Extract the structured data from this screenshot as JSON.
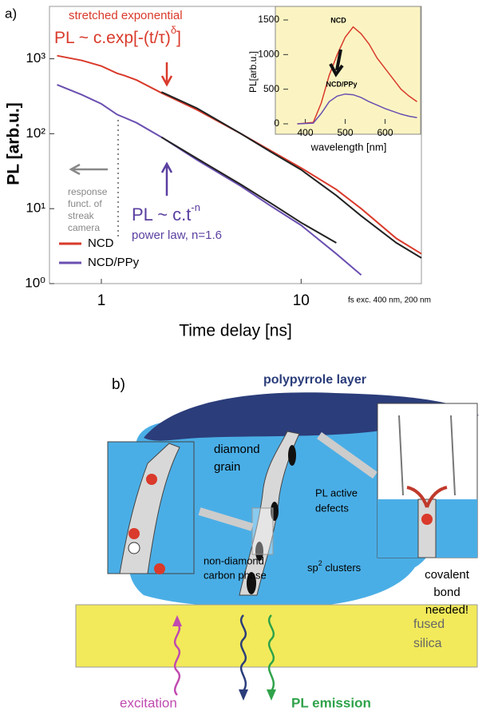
{
  "chart_data": [
    {
      "type": "line",
      "panel_label": "a)",
      "x_label": "Time delay [ns]",
      "y_label": "PL [arb.u.]",
      "xlog": true,
      "ylog": true,
      "xlim": [
        0.55,
        40
      ],
      "ylim": [
        1,
        5000
      ],
      "xticks": [
        1,
        10
      ],
      "yticks": [
        {
          "value": 1,
          "label": "10⁰"
        },
        {
          "value": 10,
          "label": "10¹"
        },
        {
          "value": 100,
          "label": "10²"
        },
        {
          "value": 1000,
          "label": "10³"
        }
      ],
      "legend": "lower left",
      "x": [
        0.6,
        0.8,
        1,
        1.2,
        1.3,
        1.5,
        2,
        3,
        5,
        7,
        10,
        15,
        20,
        30,
        40
      ],
      "series": [
        {
          "name": "NCD",
          "color": "#d93a2b",
          "values": [
            1100,
            950,
            800,
            640,
            600,
            520,
            350,
            210,
            100,
            60,
            35,
            18,
            10,
            4,
            2.5
          ]
        },
        {
          "name": "NCD/PPy",
          "color": "#6a4fb0",
          "values": [
            450,
            330,
            250,
            180,
            165,
            140,
            90,
            45,
            20,
            11,
            6,
            2.5,
            1.3,
            null,
            null
          ]
        },
        {
          "color": "#222222",
          "values": [
            null,
            null,
            null,
            null,
            null,
            null,
            360,
            220,
            100,
            58,
            33,
            15,
            8,
            3.5,
            2.2
          ]
        },
        {
          "color": "#222222",
          "values": [
            null,
            null,
            null,
            null,
            null,
            null,
            90,
            47,
            21,
            12,
            6.5,
            3.5,
            null,
            null,
            null
          ]
        }
      ],
      "annotations": {
        "stretched_title": "stretched exponential",
        "stretched_formula": [
          "PL ~ c.exp[-(t/τ)",
          "δ",
          "]"
        ],
        "power_formula": [
          "PL ~ c.t",
          "-n"
        ],
        "power_note": "power law, n=1.6",
        "response": [
          "response",
          "funct. of",
          "streak",
          "camera"
        ],
        "excitation_note": "fs exc. 400 nm, 200 nm"
      }
    },
    {
      "type": "line",
      "x_label": "wavelength [nm]",
      "y_label": "PL[arb.u.]",
      "xlog": false,
      "ylog": false,
      "xlim": [
        345,
        685
      ],
      "ylim": [
        0,
        1650
      ],
      "xticks": [
        400,
        500,
        600
      ],
      "yticks": [
        0,
        500,
        1000,
        1500
      ],
      "x": [
        380,
        420,
        440,
        460,
        480,
        500,
        520,
        540,
        560,
        580,
        600,
        620,
        640,
        660,
        680
      ],
      "series": [
        {
          "name": "NCD",
          "color": "#d93a2b",
          "values": [
            0,
            20,
            300,
            700,
            1000,
            1250,
            1400,
            1300,
            1150,
            950,
            800,
            650,
            500,
            400,
            320
          ]
        },
        {
          "name": "NCD/PPy",
          "color": "#6a4fb0",
          "values": [
            0,
            10,
            150,
            320,
            400,
            430,
            420,
            380,
            320,
            270,
            220,
            180,
            140,
            110,
            90
          ]
        }
      ]
    }
  ],
  "diagram": {
    "panel_label": "b)",
    "labels": {
      "layer": "polypyrrole layer",
      "grain": [
        "diamond",
        "grain"
      ],
      "defects": [
        "PL active",
        "defects"
      ],
      "clusters": [
        "sp",
        "2",
        " clusters"
      ],
      "carbon": [
        "non-diamond",
        "carbon phase"
      ],
      "bond": [
        "covalent",
        "bond",
        "needed!"
      ],
      "silica": [
        "fused",
        "silica"
      ],
      "excitation": "excitation",
      "emission": "PL emission"
    }
  }
}
